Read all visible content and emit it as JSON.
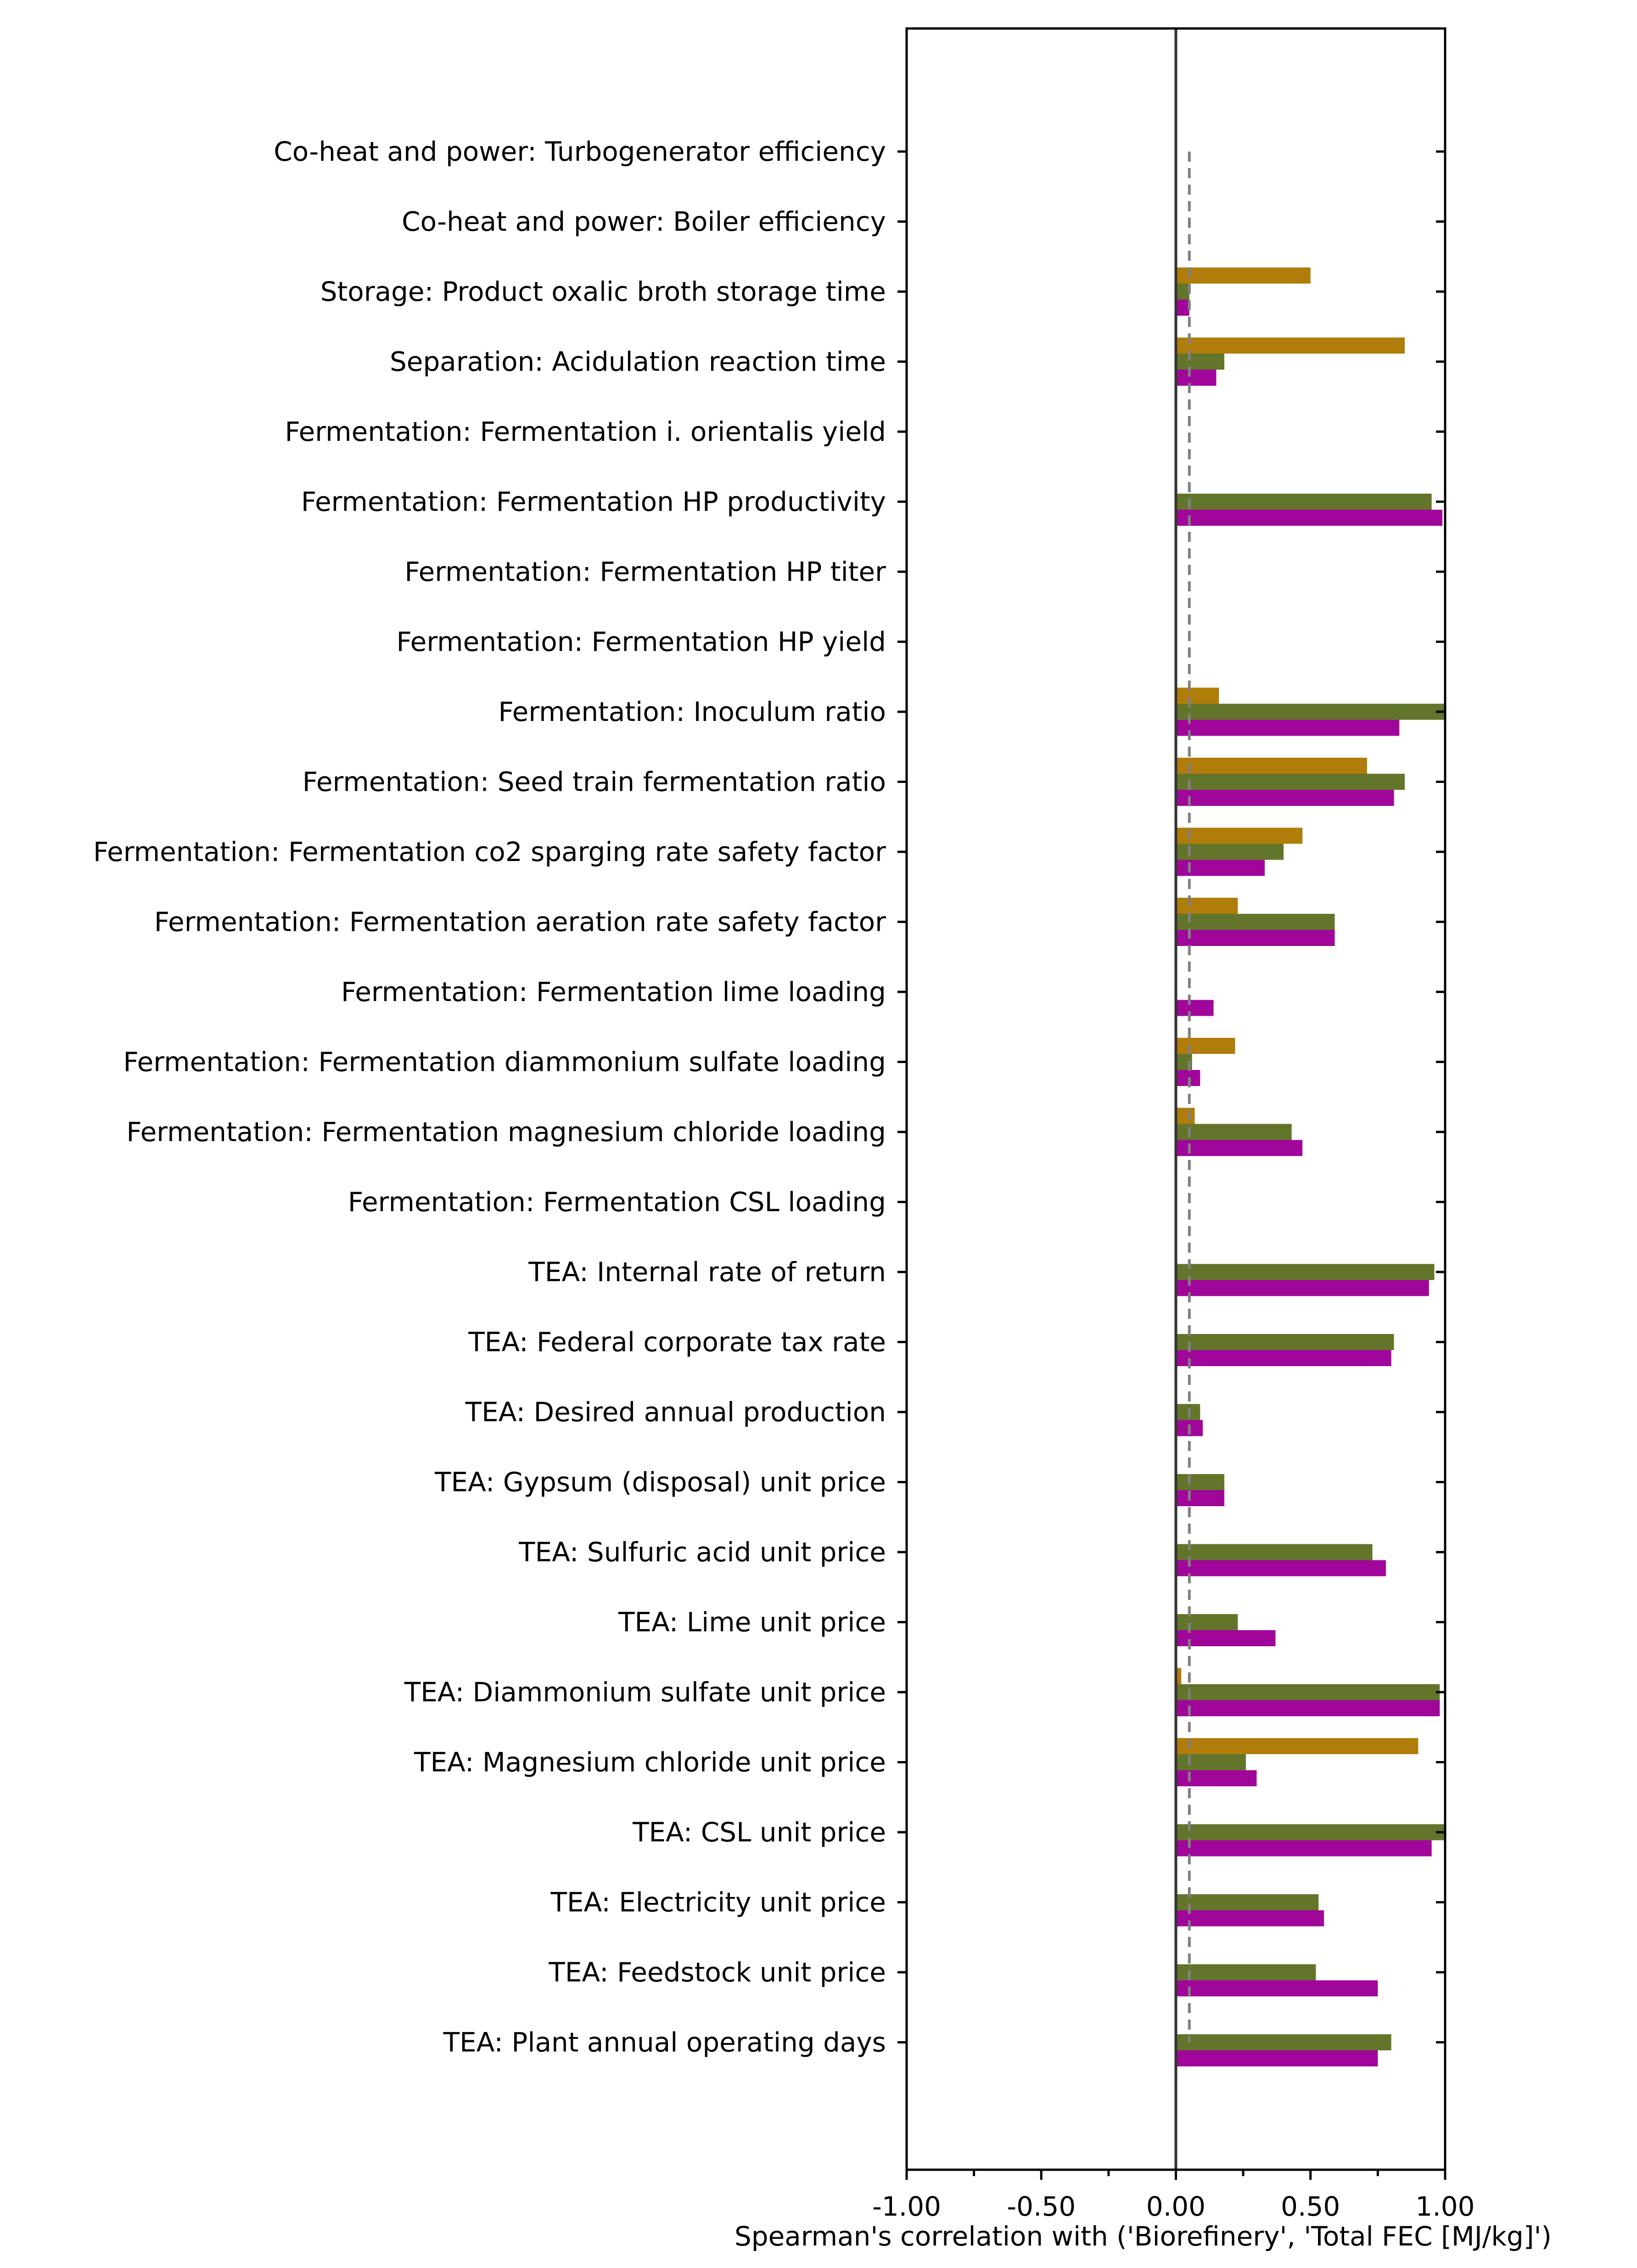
{
  "chart_data": {
    "type": "bar",
    "orientation": "horizontal",
    "title": "",
    "xlabel": "Spearman's correlation with ('Biorefinery', 'Total FEC [MJ/kg]')",
    "ylabel": "",
    "xlim": [
      -1.0,
      1.0
    ],
    "x_ticks": [
      "-1.00",
      "-0.50",
      "0.00",
      "0.50",
      "1.00"
    ],
    "x_tick_values": [
      -1.0,
      -0.5,
      0.0,
      0.5,
      1.0
    ],
    "grid": false,
    "legend": "none",
    "threshold_line": 0.05,
    "categories": [
      "Co-heat and power: Turbogenerator efficiency",
      "Co-heat and power: Boiler efficiency",
      "Storage: Product oxalic broth storage time",
      "Separation: Acidulation reaction time",
      "Fermentation: Fermentation i. orientalis yield",
      "Fermentation: Fermentation HP productivity",
      "Fermentation: Fermentation HP titer",
      "Fermentation: Fermentation HP yield",
      "Fermentation: Inoculum ratio",
      "Fermentation: Seed train fermentation ratio",
      "Fermentation: Fermentation co2 sparging rate safety factor",
      "Fermentation: Fermentation aeration rate safety factor",
      "Fermentation: Fermentation lime loading",
      "Fermentation: Fermentation diammonium sulfate loading",
      "Fermentation: Fermentation magnesium chloride loading",
      "Fermentation: Fermentation CSL loading",
      "TEA: Internal rate of return",
      "TEA: Federal corporate tax rate",
      "TEA: Desired annual production",
      "TEA: Gypsum (disposal) unit price",
      "TEA: Sulfuric acid unit price",
      "TEA: Lime unit price",
      "TEA: Diammonium sulfate unit price",
      "TEA: Magnesium chloride unit price",
      "TEA: CSL unit price",
      "TEA: Electricity unit price",
      "TEA: Feedstock unit price",
      "TEA: Plant annual operating days"
    ],
    "series": [
      {
        "color": "#b07c0a",
        "values": [
          0,
          0,
          0.5,
          0.85,
          0,
          0,
          0,
          0,
          0.16,
          0.71,
          0.47,
          0.23,
          0,
          0.22,
          0.07,
          0,
          0,
          0,
          0,
          0,
          0,
          0,
          0.02,
          0.9,
          0,
          0,
          0,
          0
        ]
      },
      {
        "color": "#62752a",
        "values": [
          0,
          0,
          0.05,
          0.18,
          0,
          0.95,
          0,
          0,
          1.0,
          0.85,
          0.4,
          0.59,
          0,
          0.06,
          0.43,
          0,
          0.96,
          0.81,
          0.09,
          0.18,
          0.73,
          0.23,
          0.98,
          0.26,
          1.0,
          0.53,
          0.52,
          0.8
        ]
      },
      {
        "color": "#a0069a",
        "values": [
          0,
          0,
          0.05,
          0.15,
          0,
          0.99,
          0,
          0,
          0.83,
          0.81,
          0.33,
          0.59,
          0.14,
          0.09,
          0.47,
          0,
          0.94,
          0.8,
          0.1,
          0.18,
          0.78,
          0.37,
          0.98,
          0.3,
          0.95,
          0.55,
          0.75,
          0.75
        ]
      }
    ]
  }
}
